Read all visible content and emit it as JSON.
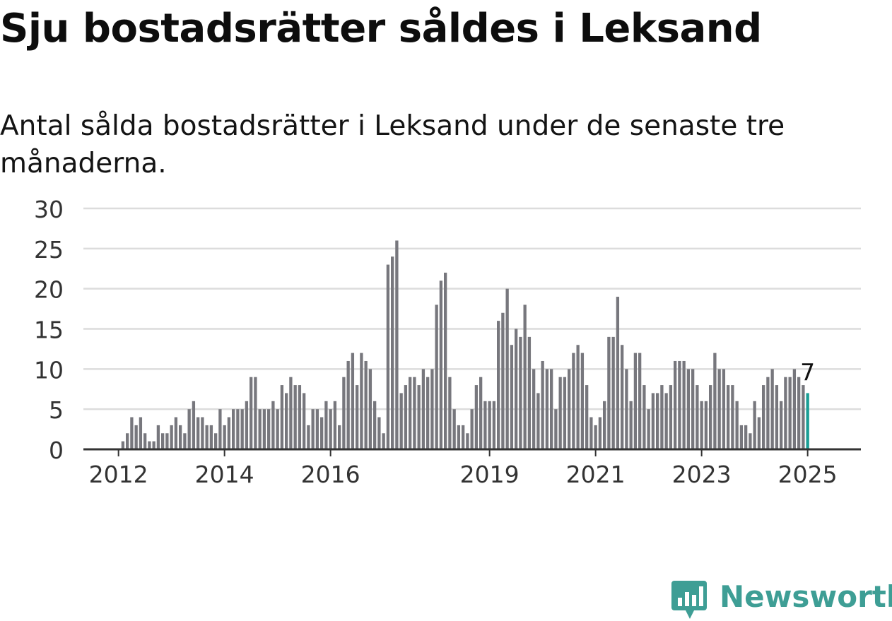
{
  "title": "Sju bostadsrätter såldes i Leksand",
  "subtitle": "Antal sålda bostadsrätter i Leksand under de senaste tre månaderna.",
  "logo_text": "Newsworthy",
  "colors": {
    "bar": "#77777d",
    "highlight": "#1a9e95",
    "grid": "#dcdcdc",
    "axis": "#333333",
    "logo": "#3e9e95"
  },
  "chart_data": {
    "type": "bar",
    "title": "Sju bostadsrätter såldes i Leksand",
    "subtitle": "Antal sålda bostadsrätter i Leksand under de senaste tre månaderna.",
    "xlabel": "",
    "ylabel": "",
    "ylim": [
      0,
      30
    ],
    "yticks": [
      0,
      5,
      10,
      15,
      20,
      25,
      30
    ],
    "x_tick_labels": [
      "2012",
      "2014",
      "2016",
      "2019",
      "2021",
      "2023",
      "2025"
    ],
    "x_tick_months": [
      "2012-01",
      "2014-01",
      "2016-01",
      "2019-01",
      "2021-01",
      "2023-01",
      "2025-01"
    ],
    "grid": true,
    "series": [
      {
        "start_month": "2012-01",
        "end_month": "2025-01",
        "values": [
          0,
          1,
          2,
          4,
          3,
          4,
          2,
          1,
          1,
          3,
          2,
          2,
          3,
          4,
          3,
          2,
          5,
          6,
          4,
          4,
          3,
          3,
          2,
          5,
          3,
          4,
          5,
          5,
          5,
          6,
          9,
          9,
          5,
          5,
          5,
          6,
          5,
          8,
          7,
          9,
          8,
          8,
          7,
          3,
          5,
          5,
          4,
          6,
          5,
          6,
          3,
          9,
          11,
          12,
          8,
          12,
          11,
          10,
          6,
          4,
          2,
          23,
          24,
          26,
          7,
          8,
          9,
          9,
          8,
          10,
          9,
          10,
          18,
          21,
          22,
          9,
          5,
          3,
          3,
          2,
          5,
          8,
          9,
          6,
          6,
          6,
          16,
          17,
          20,
          13,
          15,
          14,
          18,
          14,
          10,
          7,
          11,
          10,
          10,
          5,
          9,
          9,
          10,
          12,
          13,
          12,
          8,
          4,
          3,
          4,
          6,
          14,
          14,
          19,
          13,
          10,
          6,
          12,
          12,
          8,
          5,
          7,
          7,
          8,
          7,
          8,
          11,
          11,
          11,
          10,
          10,
          8,
          6,
          6,
          8,
          12,
          10,
          10,
          8,
          8,
          6,
          3,
          3,
          2,
          6,
          4,
          8,
          9,
          10,
          8,
          6,
          9,
          9,
          10,
          9,
          8,
          7
        ]
      }
    ],
    "annotations": [
      {
        "month": "2025-01",
        "value": 7,
        "text": "7"
      }
    ]
  }
}
